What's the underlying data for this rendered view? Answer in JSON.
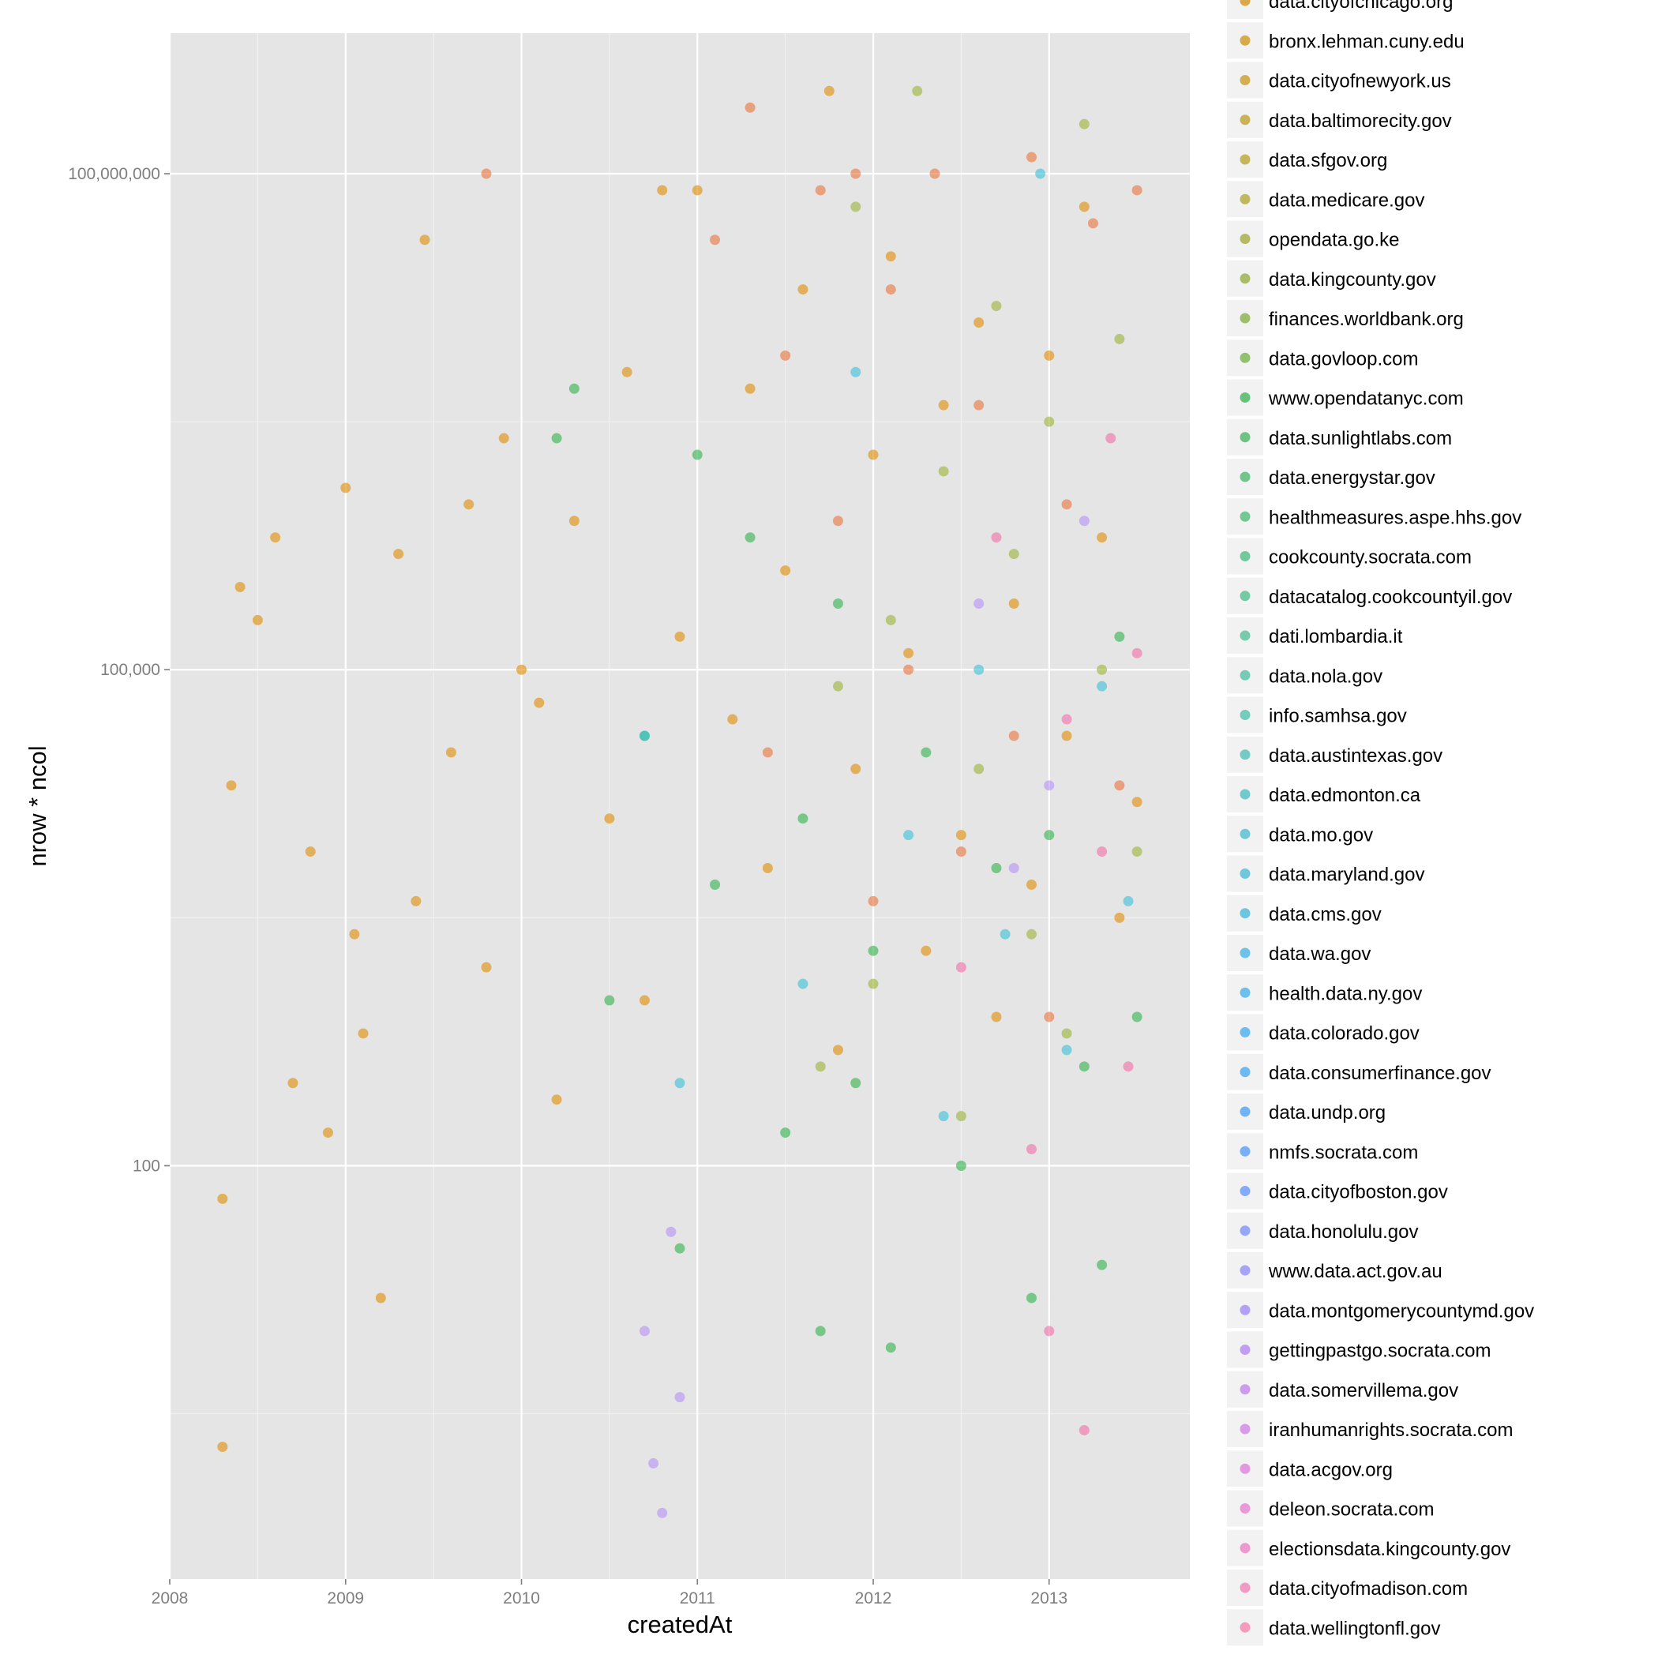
{
  "chart_data": {
    "type": "scatter",
    "title": "",
    "xlabel": "createdAt",
    "ylabel": "nrow * ncol",
    "x_scale": "time",
    "y_scale": "log10",
    "xlim": [
      2008.0,
      2013.8
    ],
    "ylim_log10": [
      -0.5,
      8.85
    ],
    "x_ticks": [
      2008,
      2009,
      2010,
      2011,
      2012,
      2013
    ],
    "x_tick_labels": [
      "2008",
      "2009",
      "2010",
      "2011",
      "2012",
      "2013"
    ],
    "y_ticks": [
      100,
      100000,
      100000000
    ],
    "y_tick_labels": [
      "100",
      "100,000",
      "100,000,000"
    ],
    "grid": true,
    "legend_position": "right",
    "legend_entries": [
      {
        "name": "data.cityofchicago.org",
        "color": "#d89e36"
      },
      {
        "name": "bronx.lehman.cuny.edu",
        "color": "#d4a23a"
      },
      {
        "name": "data.cityofnewyork.us",
        "color": "#d0a63e"
      },
      {
        "name": "data.baltimorecity.gov",
        "color": "#c8ab45"
      },
      {
        "name": "data.sfgov.org",
        "color": "#c2ae4a"
      },
      {
        "name": "data.medicare.gov",
        "color": "#b9b14f"
      },
      {
        "name": "opendata.go.ke",
        "color": "#aeb454"
      },
      {
        "name": "data.kingcounty.gov",
        "color": "#a2b659"
      },
      {
        "name": "finances.worldbank.org",
        "color": "#94b95d"
      },
      {
        "name": "data.govloop.com",
        "color": "#85bb61"
      },
      {
        "name": "www.opendatanyc.com",
        "color": "#57bd6e"
      },
      {
        "name": "data.sunlightlabs.com",
        "color": "#5fbe76"
      },
      {
        "name": "data.energystar.gov",
        "color": "#62c17f"
      },
      {
        "name": "healthmeasures.aspe.hhs.gov",
        "color": "#64c288"
      },
      {
        "name": "cookcounty.socrata.com",
        "color": "#66c491"
      },
      {
        "name": "datacatalog.cookcountyil.gov",
        "color": "#67c59b"
      },
      {
        "name": "dati.lombardia.it",
        "color": "#68c6a4"
      },
      {
        "name": "data.nola.gov",
        "color": "#68c6ad"
      },
      {
        "name": "info.samhsa.gov",
        "color": "#67c6b6"
      },
      {
        "name": "data.austintexas.gov",
        "color": "#66c6bf"
      },
      {
        "name": "data.edmonton.ca",
        "color": "#64c5c8"
      },
      {
        "name": "data.mo.gov",
        "color": "#62c4d0"
      },
      {
        "name": "data.maryland.gov",
        "color": "#61c2d8"
      },
      {
        "name": "data.cms.gov",
        "color": "#5fc0df"
      },
      {
        "name": "data.wa.gov",
        "color": "#5ebde6"
      },
      {
        "name": "health.data.ny.gov",
        "color": "#5dbaec"
      },
      {
        "name": "data.colorado.gov",
        "color": "#5cb6f1"
      },
      {
        "name": "data.consumerfinance.gov",
        "color": "#5eb2f4"
      },
      {
        "name": "data.undp.org",
        "color": "#62adf7"
      },
      {
        "name": "nmfs.socrata.com",
        "color": "#69a8f9"
      },
      {
        "name": "data.cityofboston.gov",
        "color": "#78a3fa"
      },
      {
        "name": "data.honolulu.gov",
        "color": "#8a9ffa"
      },
      {
        "name": "www.data.act.gov.au",
        "color": "#9c9bf9"
      },
      {
        "name": "data.montgomerycountymd.gov",
        "color": "#ad98f7"
      },
      {
        "name": "gettingpastgo.socrata.com",
        "color": "#bc95f3"
      },
      {
        "name": "data.somervillema.gov",
        "color": "#ca92ee"
      },
      {
        "name": "iranhumanrights.socrata.com",
        "color": "#d690e7"
      },
      {
        "name": "data.acgov.org",
        "color": "#e08fdf"
      },
      {
        "name": "deleon.socrata.com",
        "color": "#e88ed6"
      },
      {
        "name": "electionsdata.kingcounty.gov",
        "color": "#ee8ecc"
      },
      {
        "name": "data.cityofmadison.com",
        "color": "#f28fc1"
      },
      {
        "name": "data.wellingtonfl.gov",
        "color": "#f591b6"
      }
    ],
    "series": [
      {
        "name": "data.cityofchicago.org",
        "color": "#e08c00",
        "points": [
          [
            2008.3,
            0.3
          ],
          [
            2008.3,
            1.8
          ],
          [
            2008.35,
            4.3
          ],
          [
            2008.4,
            5.5
          ],
          [
            2008.5,
            5.3
          ],
          [
            2008.6,
            5.8
          ],
          [
            2008.7,
            2.5
          ],
          [
            2008.8,
            3.9
          ],
          [
            2008.9,
            2.2
          ],
          [
            2009.0,
            6.1
          ],
          [
            2009.05,
            3.4
          ],
          [
            2009.1,
            2.8
          ],
          [
            2009.2,
            1.2
          ],
          [
            2009.3,
            5.7
          ],
          [
            2009.4,
            3.6
          ],
          [
            2009.45,
            7.6
          ],
          [
            2009.6,
            4.5
          ],
          [
            2009.7,
            6.0
          ],
          [
            2009.8,
            3.2
          ],
          [
            2009.9,
            6.4
          ],
          [
            2010.0,
            5.0
          ],
          [
            2010.1,
            4.8
          ],
          [
            2010.2,
            2.4
          ],
          [
            2010.3,
            5.9
          ],
          [
            2010.5,
            4.1
          ],
          [
            2010.6,
            6.8
          ],
          [
            2010.7,
            3.0
          ],
          [
            2010.8,
            7.9
          ],
          [
            2010.9,
            5.2
          ],
          [
            2011.0,
            7.9
          ],
          [
            2011.2,
            4.7
          ],
          [
            2011.3,
            6.7
          ],
          [
            2011.4,
            3.8
          ],
          [
            2011.5,
            5.6
          ],
          [
            2011.6,
            7.3
          ],
          [
            2011.75,
            8.5
          ],
          [
            2011.8,
            2.7
          ],
          [
            2011.9,
            4.4
          ],
          [
            2012.0,
            6.3
          ],
          [
            2012.1,
            7.5
          ],
          [
            2012.2,
            5.1
          ],
          [
            2012.3,
            3.3
          ],
          [
            2012.4,
            6.6
          ],
          [
            2012.5,
            4.0
          ],
          [
            2012.6,
            7.1
          ],
          [
            2012.7,
            2.9
          ],
          [
            2012.8,
            5.4
          ],
          [
            2012.9,
            3.7
          ],
          [
            2013.0,
            6.9
          ],
          [
            2013.1,
            4.6
          ],
          [
            2013.2,
            7.8
          ],
          [
            2013.3,
            5.8
          ],
          [
            2013.4,
            3.5
          ],
          [
            2013.5,
            4.2
          ]
        ]
      },
      {
        "name": "data.kingcounty.gov",
        "color": "#9ab335",
        "points": [
          [
            2011.7,
            2.6
          ],
          [
            2011.8,
            4.9
          ],
          [
            2011.9,
            7.8
          ],
          [
            2012.0,
            3.1
          ],
          [
            2012.1,
            5.3
          ],
          [
            2012.25,
            8.5
          ],
          [
            2012.4,
            6.2
          ],
          [
            2012.5,
            2.3
          ],
          [
            2012.6,
            4.4
          ],
          [
            2012.7,
            7.2
          ],
          [
            2012.8,
            5.7
          ],
          [
            2012.9,
            3.4
          ],
          [
            2013.0,
            6.5
          ],
          [
            2013.1,
            2.8
          ],
          [
            2013.2,
            8.3
          ],
          [
            2013.3,
            5.0
          ],
          [
            2013.4,
            7.0
          ],
          [
            2013.5,
            3.9
          ]
        ]
      },
      {
        "name": "www.opendatanyc.com",
        "color": "#2fb34a",
        "points": [
          [
            2010.2,
            6.4
          ],
          [
            2010.3,
            6.7
          ],
          [
            2010.5,
            3.0
          ],
          [
            2010.7,
            4.6
          ],
          [
            2010.9,
            1.5
          ],
          [
            2011.0,
            6.3
          ],
          [
            2011.1,
            3.7
          ],
          [
            2011.3,
            5.8
          ],
          [
            2011.5,
            2.2
          ],
          [
            2011.6,
            4.1
          ],
          [
            2011.7,
            1.0
          ],
          [
            2011.8,
            5.4
          ],
          [
            2011.9,
            2.5
          ],
          [
            2012.0,
            3.3
          ],
          [
            2012.1,
            0.9
          ],
          [
            2012.3,
            4.5
          ],
          [
            2012.5,
            2.0
          ],
          [
            2012.7,
            3.8
          ],
          [
            2012.9,
            1.2
          ],
          [
            2013.0,
            4.0
          ],
          [
            2013.2,
            2.6
          ],
          [
            2013.3,
            1.4
          ],
          [
            2013.4,
            5.2
          ],
          [
            2013.5,
            2.9
          ]
        ]
      },
      {
        "name": "data.cityofboston.gov",
        "color": "#38bfd8",
        "points": [
          [
            2010.7,
            4.6
          ],
          [
            2010.9,
            2.5
          ],
          [
            2011.6,
            3.1
          ],
          [
            2011.9,
            6.8
          ],
          [
            2012.2,
            4.0
          ],
          [
            2012.4,
            2.3
          ],
          [
            2012.6,
            5.0
          ],
          [
            2012.75,
            3.4
          ],
          [
            2012.95,
            8.0
          ],
          [
            2013.1,
            2.7
          ],
          [
            2013.3,
            4.9
          ],
          [
            2013.45,
            3.6
          ]
        ]
      },
      {
        "name": "data.montgomerycountymd.gov",
        "color": "#b48ff5",
        "points": [
          [
            2010.7,
            1.0
          ],
          [
            2010.75,
            0.2
          ],
          [
            2010.8,
            -0.1
          ],
          [
            2010.85,
            1.6
          ],
          [
            2010.9,
            0.6
          ],
          [
            2012.6,
            5.4
          ],
          [
            2012.8,
            3.8
          ],
          [
            2013.0,
            4.3
          ],
          [
            2013.2,
            5.9
          ]
        ]
      },
      {
        "name": "data.wellingtonfl.gov",
        "color": "#f26da6",
        "points": [
          [
            2012.5,
            3.2
          ],
          [
            2012.7,
            5.8
          ],
          [
            2012.9,
            2.1
          ],
          [
            2013.0,
            1.0
          ],
          [
            2013.1,
            4.7
          ],
          [
            2013.2,
            0.4
          ],
          [
            2013.3,
            3.9
          ],
          [
            2013.35,
            6.4
          ],
          [
            2013.45,
            2.6
          ],
          [
            2013.5,
            5.1
          ]
        ]
      },
      {
        "name": "data.sfgov.org",
        "color": "#e8733a",
        "points": [
          [
            2009.8,
            8.0
          ],
          [
            2011.1,
            7.6
          ],
          [
            2011.3,
            8.4
          ],
          [
            2011.4,
            4.5
          ],
          [
            2011.5,
            6.9
          ],
          [
            2011.7,
            7.9
          ],
          [
            2011.8,
            5.9
          ],
          [
            2011.9,
            8.0
          ],
          [
            2012.0,
            3.6
          ],
          [
            2012.1,
            7.3
          ],
          [
            2012.2,
            5.0
          ],
          [
            2012.35,
            8.0
          ],
          [
            2012.5,
            3.9
          ],
          [
            2012.6,
            6.6
          ],
          [
            2012.8,
            4.6
          ],
          [
            2012.9,
            8.1
          ],
          [
            2013.0,
            2.9
          ],
          [
            2013.1,
            6.0
          ],
          [
            2013.25,
            7.7
          ],
          [
            2013.4,
            4.3
          ],
          [
            2013.5,
            7.9
          ]
        ]
      }
    ]
  }
}
